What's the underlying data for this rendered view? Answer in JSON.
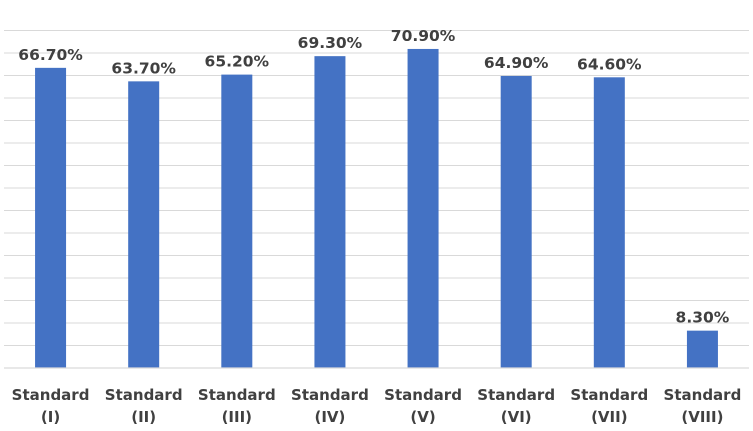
{
  "chart_data": {
    "type": "bar",
    "title": "",
    "xlabel": "",
    "ylabel": "",
    "categories": [
      [
        "Standard",
        "(I)"
      ],
      [
        "Standard",
        "(II)"
      ],
      [
        "Standard",
        "(III)"
      ],
      [
        "Standard",
        "(IV)"
      ],
      [
        "Standard",
        "(V)"
      ],
      [
        "Standard",
        "(VI)"
      ],
      [
        "Standard",
        "(VII)"
      ],
      [
        "Standard",
        "(VIII)"
      ]
    ],
    "values": [
      66.7,
      63.7,
      65.2,
      69.3,
      70.9,
      64.9,
      64.6,
      8.3
    ],
    "value_labels": [
      "66.70%",
      "63.70%",
      "65.20%",
      "69.30%",
      "70.90%",
      "64.90%",
      "64.60%",
      "8.30%"
    ],
    "ylim": [
      0,
      75
    ],
    "grid": true,
    "bar_color": "#4472C4",
    "legend": "none"
  }
}
